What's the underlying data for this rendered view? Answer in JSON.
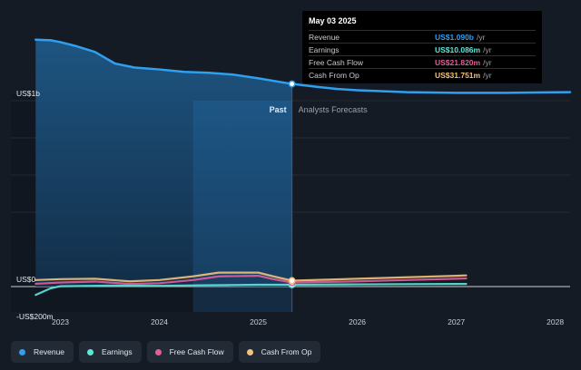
{
  "tooltip": {
    "date": "May 03 2025",
    "rows": [
      {
        "name": "Revenue",
        "value": "US$1.090b",
        "unit": "/yr",
        "color": "#2f9ff0"
      },
      {
        "name": "Earnings",
        "value": "US$10.086m",
        "unit": "/yr",
        "color": "#5ae8db"
      },
      {
        "name": "Free Cash Flow",
        "value": "US$21.820m",
        "unit": "/yr",
        "color": "#e15e9e"
      },
      {
        "name": "Cash From Op",
        "value": "US$31.751m",
        "unit": "/yr",
        "color": "#f4c27a"
      }
    ]
  },
  "chart_data": {
    "type": "area",
    "y_tick_labels": [
      "US$1b",
      "US$0",
      "-US$200m"
    ],
    "y_ticks": [
      1000,
      0,
      -200
    ],
    "ylim": [
      -200,
      1000
    ],
    "xlim": [
      2022.5,
      2028.15
    ],
    "x_tick_labels": [
      "2023",
      "2024",
      "2025",
      "2026",
      "2027",
      "2028"
    ],
    "x_ticks": [
      2023,
      2024,
      2025,
      2026,
      2027,
      2028
    ],
    "past_label": "Past",
    "forecast_label": "Analysts Forecasts",
    "divider_x": 2025.34,
    "highlight_range": [
      2024.34,
      2025.34
    ],
    "grid": true,
    "series": [
      {
        "name": "Revenue",
        "color": "#2f9ff0",
        "x": [
          2022.75,
          2022.9,
          2023.0,
          2023.15,
          2023.35,
          2023.55,
          2023.75,
          2024.0,
          2024.25,
          2024.5,
          2024.75,
          2025.0,
          2025.34,
          2025.6,
          2025.8,
          2026.0,
          2026.5,
          2027.0,
          2027.5,
          2028.0,
          2028.15
        ],
        "y": [
          1328,
          1325,
          1315,
          1295,
          1262,
          1200,
          1178,
          1168,
          1155,
          1150,
          1140,
          1120,
          1090,
          1074,
          1063,
          1056,
          1046,
          1042,
          1042,
          1045,
          1046
        ]
      },
      {
        "name": "Earnings",
        "color": "#5ae8db",
        "x": [
          2022.75,
          2022.9,
          2023.0,
          2023.5,
          2024.0,
          2024.34,
          2024.7,
          2025.0,
          2025.34,
          2026.0,
          2026.5,
          2027.0,
          2027.1
        ],
        "y": [
          -45,
          -10,
          2,
          5,
          4,
          6,
          8,
          10,
          10,
          12,
          13,
          14,
          14
        ]
      },
      {
        "name": "Free Cash Flow",
        "color": "#e15e9e",
        "x": [
          2022.75,
          2023.0,
          2023.35,
          2023.7,
          2024.0,
          2024.34,
          2024.6,
          2025.0,
          2025.15,
          2025.34,
          2026.0,
          2026.5,
          2027.0,
          2027.1
        ],
        "y": [
          15,
          22,
          27,
          14,
          18,
          35,
          55,
          58,
          40,
          21.8,
          28,
          35,
          42,
          44
        ]
      },
      {
        "name": "Cash From Op",
        "color": "#f4c27a",
        "x": [
          2022.75,
          2023.0,
          2023.35,
          2023.7,
          2024.0,
          2024.34,
          2024.6,
          2025.0,
          2025.15,
          2025.34,
          2026.0,
          2026.5,
          2027.0,
          2027.1
        ],
        "y": [
          35,
          40,
          42,
          28,
          35,
          55,
          75,
          75,
          55,
          31.751,
          42,
          50,
          58,
          60
        ]
      }
    ]
  },
  "legend": [
    {
      "label": "Revenue",
      "color": "#2f9ff0"
    },
    {
      "label": "Earnings",
      "color": "#5ae8db"
    },
    {
      "label": "Free Cash Flow",
      "color": "#e15e9e"
    },
    {
      "label": "Cash From Op",
      "color": "#f4c27a"
    }
  ]
}
